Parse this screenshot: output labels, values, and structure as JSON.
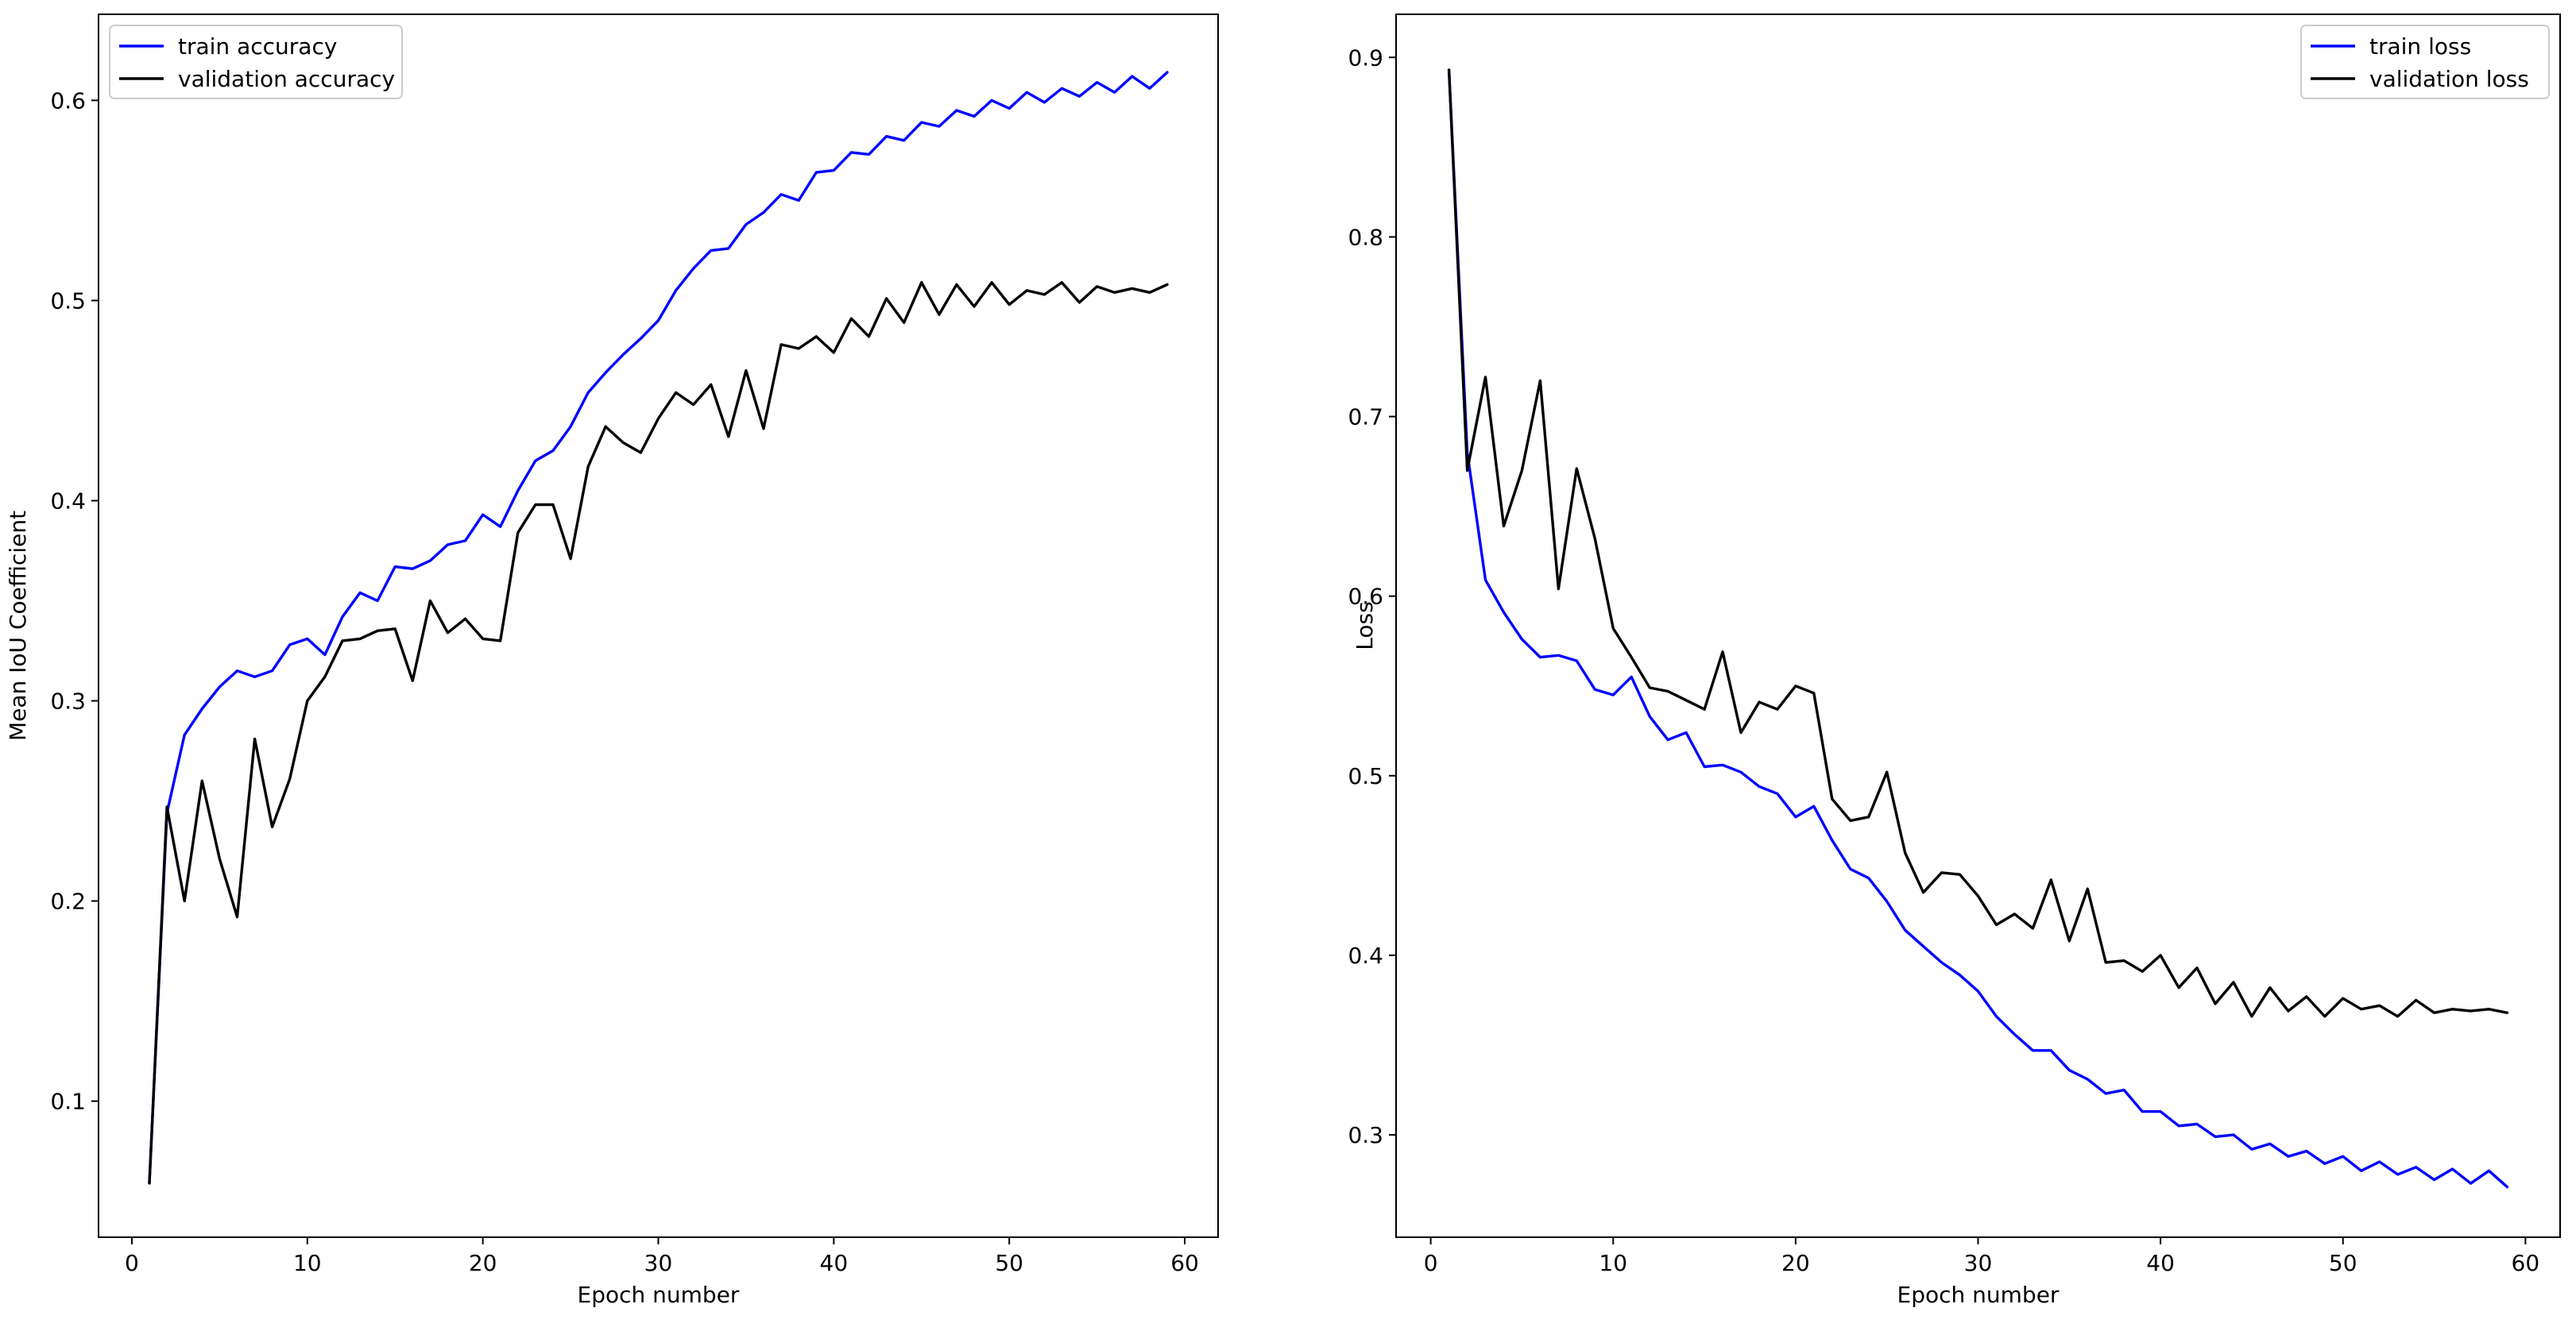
{
  "colors": {
    "train": "#0000ff",
    "validation": "#000000"
  },
  "chart_data": [
    {
      "type": "line",
      "xlabel": "Epoch number",
      "ylabel": "Mean IoU Coefficient",
      "xlim": [
        -1.9,
        61.9
      ],
      "ylim": [
        0.032,
        0.643
      ],
      "xticks": [
        0,
        10,
        20,
        30,
        40,
        50,
        60
      ],
      "yticks": [
        0.1,
        0.2,
        0.3,
        0.4,
        0.5,
        0.6
      ],
      "legend": "top-left",
      "grid": false,
      "x": [
        1,
        2,
        3,
        4,
        5,
        6,
        7,
        8,
        9,
        10,
        11,
        12,
        13,
        14,
        15,
        16,
        17,
        18,
        19,
        20,
        21,
        22,
        23,
        24,
        25,
        26,
        27,
        28,
        29,
        30,
        31,
        32,
        33,
        34,
        35,
        36,
        37,
        38,
        39,
        40,
        41,
        42,
        43,
        44,
        45,
        46,
        47,
        48,
        49,
        50,
        51,
        52,
        53,
        54,
        55,
        56,
        57,
        58,
        59
      ],
      "series": [
        {
          "name": "train accuracy",
          "color_key": "train",
          "values": [
            0.059,
            0.244,
            0.283,
            0.296,
            0.307,
            0.315,
            0.312,
            0.315,
            0.328,
            0.331,
            0.323,
            0.342,
            0.354,
            0.35,
            0.367,
            0.366,
            0.37,
            0.378,
            0.38,
            0.393,
            0.387,
            0.405,
            0.42,
            0.425,
            0.437,
            0.454,
            0.464,
            0.473,
            0.481,
            0.49,
            0.505,
            0.516,
            0.525,
            0.526,
            0.538,
            0.544,
            0.553,
            0.55,
            0.564,
            0.565,
            0.574,
            0.573,
            0.582,
            0.58,
            0.589,
            0.587,
            0.595,
            0.592,
            0.6,
            0.596,
            0.604,
            0.599,
            0.606,
            0.602,
            0.609,
            0.604,
            0.612,
            0.606,
            0.614
          ]
        },
        {
          "name": "validation accuracy",
          "color_key": "validation",
          "values": [
            0.059,
            0.247,
            0.2,
            0.26,
            0.221,
            0.192,
            0.281,
            0.237,
            0.261,
            0.3,
            0.312,
            0.33,
            0.331,
            0.335,
            0.336,
            0.31,
            0.35,
            0.334,
            0.341,
            0.331,
            0.33,
            0.384,
            0.398,
            0.398,
            0.371,
            0.417,
            0.437,
            0.429,
            0.424,
            0.441,
            0.454,
            0.448,
            0.458,
            0.432,
            0.465,
            0.436,
            0.478,
            0.476,
            0.482,
            0.474,
            0.491,
            0.482,
            0.501,
            0.489,
            0.509,
            0.493,
            0.508,
            0.497,
            0.509,
            0.498,
            0.505,
            0.503,
            0.509,
            0.499,
            0.507,
            0.504,
            0.506,
            0.504,
            0.508
          ]
        }
      ]
    },
    {
      "type": "line",
      "xlabel": "Epoch number",
      "ylabel": "Loss",
      "xlim": [
        -1.9,
        61.9
      ],
      "ylim": [
        0.243,
        0.924
      ],
      "xticks": [
        0,
        10,
        20,
        30,
        40,
        50,
        60
      ],
      "yticks": [
        0.3,
        0.4,
        0.5,
        0.6,
        0.7,
        0.8,
        0.9
      ],
      "legend": "top-right",
      "grid": false,
      "x": [
        1,
        2,
        3,
        4,
        5,
        6,
        7,
        8,
        9,
        10,
        11,
        12,
        13,
        14,
        15,
        16,
        17,
        18,
        19,
        20,
        21,
        22,
        23,
        24,
        25,
        26,
        27,
        28,
        29,
        30,
        31,
        32,
        33,
        34,
        35,
        36,
        37,
        38,
        39,
        40,
        41,
        42,
        43,
        44,
        45,
        46,
        47,
        48,
        49,
        50,
        51,
        52,
        53,
        54,
        55,
        56,
        57,
        58,
        59
      ],
      "series": [
        {
          "name": "train loss",
          "color_key": "train",
          "values": [
            0.893,
            0.68,
            0.609,
            0.591,
            0.576,
            0.566,
            0.567,
            0.564,
            0.548,
            0.545,
            0.555,
            0.533,
            0.52,
            0.524,
            0.505,
            0.506,
            0.502,
            0.494,
            0.49,
            0.477,
            0.483,
            0.464,
            0.448,
            0.443,
            0.43,
            0.414,
            0.405,
            0.396,
            0.389,
            0.38,
            0.366,
            0.356,
            0.347,
            0.347,
            0.336,
            0.331,
            0.323,
            0.325,
            0.313,
            0.313,
            0.305,
            0.306,
            0.299,
            0.3,
            0.292,
            0.295,
            0.288,
            0.291,
            0.284,
            0.288,
            0.28,
            0.285,
            0.278,
            0.282,
            0.275,
            0.281,
            0.273,
            0.28,
            0.271
          ]
        },
        {
          "name": "validation loss",
          "color_key": "validation",
          "values": [
            0.893,
            0.67,
            0.722,
            0.639,
            0.67,
            0.72,
            0.604,
            0.671,
            0.632,
            0.582,
            0.566,
            0.549,
            0.547,
            0.542,
            0.537,
            0.569,
            0.524,
            0.541,
            0.537,
            0.55,
            0.546,
            0.487,
            0.475,
            0.477,
            0.502,
            0.457,
            0.435,
            0.446,
            0.445,
            0.433,
            0.417,
            0.423,
            0.415,
            0.442,
            0.408,
            0.437,
            0.396,
            0.397,
            0.391,
            0.4,
            0.382,
            0.393,
            0.373,
            0.385,
            0.366,
            0.382,
            0.369,
            0.377,
            0.366,
            0.376,
            0.37,
            0.372,
            0.366,
            0.375,
            0.368,
            0.37,
            0.369,
            0.37,
            0.368
          ]
        }
      ]
    }
  ]
}
